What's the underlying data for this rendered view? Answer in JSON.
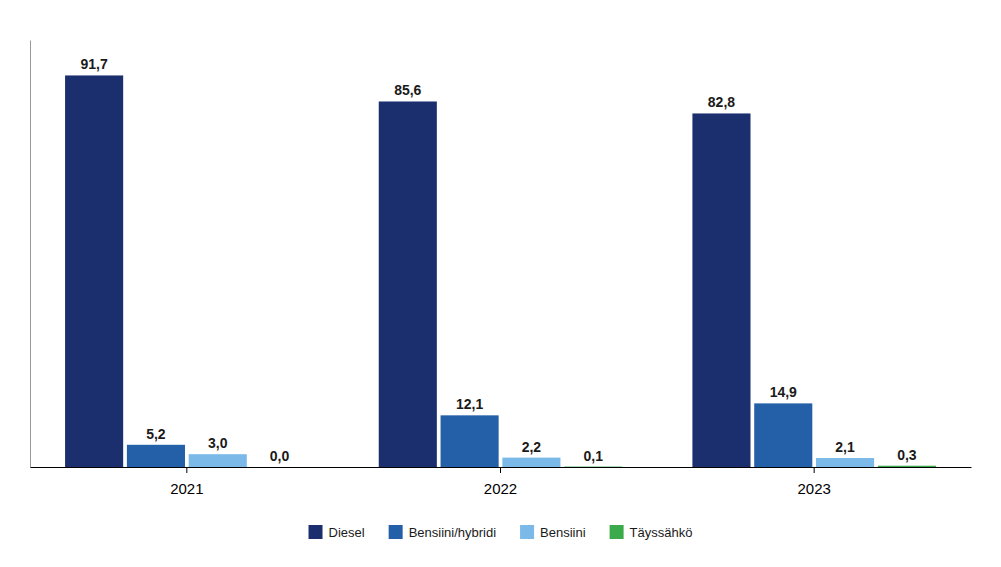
{
  "chart_data": {
    "type": "bar",
    "categories": [
      "2021",
      "2022",
      "2023"
    ],
    "series": [
      {
        "name": "Diesel",
        "color": "#1b2f6e",
        "values": [
          91.7,
          85.6,
          82.8
        ],
        "value_labels": [
          "91,7",
          "85,6",
          "82,8"
        ]
      },
      {
        "name": "Bensiini/hybridi",
        "color": "#2460a7",
        "values": [
          5.2,
          12.1,
          14.9
        ],
        "value_labels": [
          "5,2",
          "12,1",
          "14,9"
        ]
      },
      {
        "name": "Bensiini",
        "color": "#7ab9e8",
        "values": [
          3.0,
          2.2,
          2.1
        ],
        "value_labels": [
          "3,0",
          "2,2",
          "2,1"
        ]
      },
      {
        "name": "Täyssähkö",
        "color": "#3aaa4a",
        "values": [
          0.0,
          0.1,
          0.3
        ],
        "value_labels": [
          "0,0",
          "0,1",
          "0,3"
        ]
      }
    ],
    "ylim": [
      0,
      100
    ],
    "data_labels": true,
    "tick_labels": "x",
    "legend": "bottom"
  }
}
